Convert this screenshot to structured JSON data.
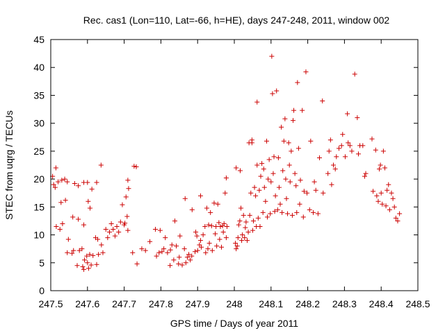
{
  "chart_data": {
    "type": "scatter",
    "title": "Rec. cas1 (Lon=110, Lat=-66, h=HE), days 247-248, 2011, window 002",
    "xlabel": "GPS time / Days of year 2011",
    "ylabel": "STEC from uqrg / TECUs",
    "xlim": [
      247.5,
      248.5
    ],
    "ylim": [
      0,
      45
    ],
    "xticks": [
      247.5,
      247.6,
      247.7,
      247.8,
      247.9,
      248.0,
      248.1,
      248.2,
      248.3,
      248.4,
      248.5
    ],
    "xtick_labels": [
      "247.5",
      "247.6",
      "247.7",
      "247.8",
      "247.9",
      "248",
      "248.1",
      "248.2",
      "248.3",
      "248.4",
      "248.5"
    ],
    "yticks": [
      0,
      5,
      10,
      15,
      20,
      25,
      30,
      35,
      40,
      45
    ],
    "ytick_labels": [
      "0",
      "5",
      "10",
      "15",
      "20",
      "25",
      "30",
      "35",
      "40",
      "45"
    ],
    "grid": false,
    "marker": "+",
    "marker_color": "#cc0000",
    "series": [
      {
        "name": "STEC",
        "points": [
          [
            247.505,
            20.5
          ],
          [
            247.508,
            19.0
          ],
          [
            247.512,
            18.5
          ],
          [
            247.514,
            22.0
          ],
          [
            247.52,
            19.5
          ],
          [
            247.53,
            19.8
          ],
          [
            247.538,
            20.0
          ],
          [
            247.545,
            19.5
          ],
          [
            247.565,
            19.2
          ],
          [
            247.575,
            18.8
          ],
          [
            247.59,
            19.4
          ],
          [
            247.6,
            19.4
          ],
          [
            247.612,
            18.2
          ],
          [
            247.625,
            19.4
          ],
          [
            247.515,
            11.5
          ],
          [
            247.525,
            11.0
          ],
          [
            247.532,
            12.0
          ],
          [
            247.528,
            15.8
          ],
          [
            247.54,
            16.2
          ],
          [
            247.548,
            9.2
          ],
          [
            247.56,
            13.2
          ],
          [
            247.575,
            12.8
          ],
          [
            247.59,
            11.8
          ],
          [
            247.602,
            16.0
          ],
          [
            247.607,
            14.8
          ],
          [
            247.622,
            9.5
          ],
          [
            247.628,
            9.2
          ],
          [
            247.545,
            6.8
          ],
          [
            247.558,
            6.7
          ],
          [
            247.562,
            7.2
          ],
          [
            247.572,
            4.5
          ],
          [
            247.578,
            7.2
          ],
          [
            247.585,
            7.5
          ],
          [
            247.587,
            4.3
          ],
          [
            247.592,
            5.5
          ],
          [
            247.598,
            6.2
          ],
          [
            247.6,
            5.0
          ],
          [
            247.606,
            6.5
          ],
          [
            247.61,
            4.6
          ],
          [
            247.615,
            6.3
          ],
          [
            247.625,
            4.7
          ],
          [
            247.63,
            6.5
          ],
          [
            247.638,
            8.2
          ],
          [
            247.642,
            6.8
          ],
          [
            247.603,
            4.0
          ],
          [
            247.59,
            3.8
          ],
          [
            247.637,
            22.5
          ],
          [
            247.65,
            11.0
          ],
          [
            247.655,
            9.5
          ],
          [
            247.66,
            10.5
          ],
          [
            247.665,
            12.0
          ],
          [
            247.67,
            11.0
          ],
          [
            247.675,
            9.8
          ],
          [
            247.68,
            11.5
          ],
          [
            247.685,
            10.5
          ],
          [
            247.69,
            12.3
          ],
          [
            247.7,
            11.8
          ],
          [
            247.702,
            12.1
          ],
          [
            247.695,
            15.4
          ],
          [
            247.708,
            13.3
          ],
          [
            247.705,
            16.8
          ],
          [
            247.71,
            19.8
          ],
          [
            247.712,
            18.3
          ],
          [
            247.71,
            10.8
          ],
          [
            247.723,
            6.8
          ],
          [
            247.727,
            22.3
          ],
          [
            247.733,
            22.2
          ],
          [
            247.735,
            4.8
          ],
          [
            247.748,
            7.5
          ],
          [
            247.758,
            7.2
          ],
          [
            247.77,
            8.8
          ],
          [
            247.785,
            11.0
          ],
          [
            247.788,
            6.2
          ],
          [
            247.795,
            6.8
          ],
          [
            247.798,
            10.8
          ],
          [
            247.803,
            7.0
          ],
          [
            247.808,
            7.5
          ],
          [
            247.812,
            9.5
          ],
          [
            247.818,
            6.8
          ],
          [
            247.825,
            4.5
          ],
          [
            247.826,
            7.3
          ],
          [
            247.83,
            8.2
          ],
          [
            247.835,
            5.5
          ],
          [
            247.838,
            12.5
          ],
          [
            247.842,
            8.0
          ],
          [
            247.848,
            4.8
          ],
          [
            247.85,
            6.0
          ],
          [
            247.852,
            9.8
          ],
          [
            247.858,
            4.6
          ],
          [
            247.864,
            7.5
          ],
          [
            247.866,
            16.5
          ],
          [
            247.868,
            5.0
          ],
          [
            247.872,
            6.0
          ],
          [
            247.876,
            6.5
          ],
          [
            247.88,
            5.5
          ],
          [
            247.884,
            6.2
          ],
          [
            247.885,
            14.5
          ],
          [
            247.893,
            7.0
          ],
          [
            247.895,
            10.5
          ],
          [
            247.898,
            9.8
          ],
          [
            247.9,
            7.2
          ],
          [
            247.905,
            8.2
          ],
          [
            247.908,
            17.0
          ],
          [
            247.908,
            9.0
          ],
          [
            247.91,
            7.8
          ],
          [
            247.915,
            10.0
          ],
          [
            247.92,
            11.5
          ],
          [
            247.922,
            6.8
          ],
          [
            247.925,
            14.8
          ],
          [
            247.928,
            7.5
          ],
          [
            247.93,
            11.8
          ],
          [
            247.932,
            8.5
          ],
          [
            247.935,
            14.0
          ],
          [
            247.938,
            11.6
          ],
          [
            247.94,
            7.2
          ],
          [
            247.945,
            15.7
          ],
          [
            247.948,
            10.2
          ],
          [
            247.95,
            11.5
          ],
          [
            247.952,
            8.0
          ],
          [
            247.955,
            15.5
          ],
          [
            247.958,
            12.2
          ],
          [
            247.96,
            9.2
          ],
          [
            247.962,
            11.5
          ],
          [
            247.965,
            7.8
          ],
          [
            247.968,
            11.6
          ],
          [
            247.97,
            10.5
          ],
          [
            247.972,
            12.0
          ],
          [
            247.975,
            17.5
          ],
          [
            247.978,
            9.5
          ],
          [
            247.978,
            20.2
          ],
          [
            247.98,
            11.5
          ],
          [
            248.003,
            8.5
          ],
          [
            248.005,
            7.5
          ],
          [
            248.005,
            22.0
          ],
          [
            248.008,
            8.0
          ],
          [
            248.01,
            9.5
          ],
          [
            248.012,
            11.8
          ],
          [
            248.015,
            12.5
          ],
          [
            248.016,
            21.5
          ],
          [
            248.018,
            14.8
          ],
          [
            248.02,
            9.0
          ],
          [
            248.022,
            10.0
          ],
          [
            248.025,
            13.5
          ],
          [
            248.028,
            9.5
          ],
          [
            248.03,
            11.3
          ],
          [
            248.032,
            12.3
          ],
          [
            248.035,
            9.0
          ],
          [
            248.038,
            10.5
          ],
          [
            248.04,
            26.5
          ],
          [
            248.042,
            13.5
          ],
          [
            248.045,
            17.5
          ],
          [
            248.048,
            27.0
          ],
          [
            248.048,
            26.5
          ],
          [
            248.05,
            10.8
          ],
          [
            248.052,
            12.5
          ],
          [
            248.055,
            18.5
          ],
          [
            248.058,
            17.0
          ],
          [
            248.06,
            11.5
          ],
          [
            248.062,
            33.8
          ],
          [
            248.062,
            22.5
          ],
          [
            248.065,
            13.0
          ],
          [
            248.068,
            18.0
          ],
          [
            248.07,
            11.5
          ],
          [
            248.072,
            20.5
          ],
          [
            248.075,
            22.8
          ],
          [
            248.078,
            14.0
          ],
          [
            248.08,
            21.8
          ],
          [
            248.082,
            18.5
          ],
          [
            248.085,
            16.0
          ],
          [
            248.088,
            26.8
          ],
          [
            248.09,
            13.2
          ],
          [
            248.092,
            20.0
          ],
          [
            248.095,
            23.5
          ],
          [
            248.098,
            13.8
          ],
          [
            248.1,
            19.5
          ],
          [
            248.102,
            42.0
          ],
          [
            248.104,
            35.3
          ],
          [
            248.106,
            21.0
          ],
          [
            248.108,
            24.0
          ],
          [
            248.11,
            14.2
          ],
          [
            248.112,
            17.0
          ],
          [
            248.115,
            35.8
          ],
          [
            248.118,
            14.5
          ],
          [
            248.12,
            23.8
          ],
          [
            248.122,
            18.5
          ],
          [
            248.125,
            15.5
          ],
          [
            248.128,
            29.3
          ],
          [
            248.13,
            14.0
          ],
          [
            248.132,
            21.5
          ],
          [
            248.135,
            26.8
          ],
          [
            248.138,
            30.8
          ],
          [
            248.14,
            20.0
          ],
          [
            248.142,
            16.5
          ],
          [
            248.145,
            13.8
          ],
          [
            248.148,
            26.5
          ],
          [
            248.15,
            22.5
          ],
          [
            248.152,
            19.5
          ],
          [
            248.155,
            25.0
          ],
          [
            248.158,
            13.5
          ],
          [
            248.16,
            30.5
          ],
          [
            248.162,
            32.3
          ],
          [
            248.165,
            21.0
          ],
          [
            248.168,
            18.8
          ],
          [
            248.17,
            14.0
          ],
          [
            248.172,
            37.3
          ],
          [
            248.175,
            25.5
          ],
          [
            248.178,
            15.5
          ],
          [
            248.18,
            19.8
          ],
          [
            248.185,
            32.3
          ],
          [
            248.188,
            13.2
          ],
          [
            248.19,
            17.8
          ],
          [
            248.195,
            39.2
          ],
          [
            248.198,
            17.5
          ],
          [
            248.205,
            14.5
          ],
          [
            248.208,
            26.8
          ],
          [
            248.215,
            14.0
          ],
          [
            248.218,
            19.5
          ],
          [
            248.222,
            18.0
          ],
          [
            248.228,
            13.8
          ],
          [
            248.232,
            23.8
          ],
          [
            248.24,
            34.0
          ],
          [
            248.242,
            17.5
          ],
          [
            248.255,
            21.0
          ],
          [
            248.258,
            25.0
          ],
          [
            248.262,
            27.0
          ],
          [
            248.265,
            19.0
          ],
          [
            248.27,
            22.5
          ],
          [
            248.275,
            21.8
          ],
          [
            248.278,
            24.0
          ],
          [
            248.285,
            25.5
          ],
          [
            248.292,
            26.0
          ],
          [
            248.295,
            28.0
          ],
          [
            248.302,
            24.0
          ],
          [
            248.308,
            31.7
          ],
          [
            248.31,
            26.5
          ],
          [
            248.315,
            26.0
          ],
          [
            248.32,
            25.0
          ],
          [
            248.328,
            38.8
          ],
          [
            248.335,
            31.0
          ],
          [
            248.338,
            24.5
          ],
          [
            248.342,
            26.0
          ],
          [
            248.35,
            26.0
          ],
          [
            248.355,
            20.5
          ],
          [
            248.358,
            21.0
          ],
          [
            248.375,
            27.2
          ],
          [
            248.378,
            17.8
          ],
          [
            248.385,
            25.2
          ],
          [
            248.388,
            17.0
          ],
          [
            248.392,
            16.0
          ],
          [
            248.395,
            21.8
          ],
          [
            248.398,
            22.5
          ],
          [
            248.4,
            17.5
          ],
          [
            248.403,
            15.5
          ],
          [
            248.406,
            25.0
          ],
          [
            248.41,
            22.0
          ],
          [
            248.413,
            15.2
          ],
          [
            248.416,
            18.0
          ],
          [
            248.42,
            19.0
          ],
          [
            248.423,
            14.5
          ],
          [
            248.428,
            17.5
          ],
          [
            248.432,
            16.5
          ],
          [
            248.436,
            15.0
          ],
          [
            248.44,
            13.0
          ],
          [
            248.445,
            12.5
          ],
          [
            248.45,
            13.8
          ]
        ]
      }
    ]
  }
}
